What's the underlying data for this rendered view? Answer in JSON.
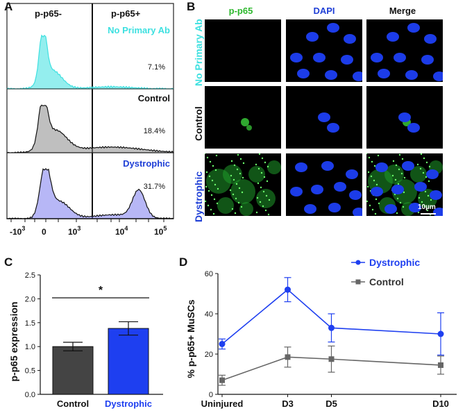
{
  "panels": {
    "a": "A",
    "b": "B",
    "c": "C",
    "d": "D"
  },
  "flow": {
    "gate_neg": "p-p65-",
    "gate_pos": "p-p65+",
    "x_ticks": [
      "-10",
      "3",
      "0",
      "10",
      "3",
      "10",
      "4",
      "10",
      "5"
    ],
    "tracks": [
      {
        "label": "No Primary Ab",
        "pct": "7.1%",
        "color": "#3de0e0"
      },
      {
        "label": "Control",
        "pct": "18.4%",
        "color": "#8a8a8a"
      },
      {
        "label": "Dystrophic",
        "pct": "31.7%",
        "color": "#7b7bef"
      }
    ]
  },
  "micro": {
    "columns": [
      "p-p65",
      "DAPI",
      "Merge"
    ],
    "column_colors": [
      "#2db82d",
      "#1f3fd6",
      "#111111"
    ],
    "rows": [
      "No Primary Ab",
      "Control",
      "Dystrophic"
    ],
    "row_colors": [
      "#3de0e0",
      "#111111",
      "#1f3fd6"
    ],
    "scale_bar": "10µm"
  },
  "chart_data": [
    {
      "type": "bar",
      "ylabel": "p-p65 expression",
      "categories": [
        "Control",
        "Dystrophic"
      ],
      "values": [
        1.0,
        1.38
      ],
      "errors": [
        0.09,
        0.14
      ],
      "colors": [
        "#444444",
        "#1e3ff0"
      ],
      "category_colors": [
        "#111111",
        "#1e3ff0"
      ],
      "ylim": [
        0,
        2.5
      ],
      "yticks": [
        "0.0",
        "0.5",
        "1.0",
        "1.5",
        "2.0",
        "2.5"
      ],
      "significance": "*"
    },
    {
      "type": "line",
      "ylabel": "% p-p65+ MuSCs",
      "x": [
        "Uninjured",
        "D3",
        "D5",
        "D10"
      ],
      "x_positions": [
        0,
        3,
        5,
        10
      ],
      "ylim": [
        0,
        60
      ],
      "yticks": [
        "0",
        "20",
        "40",
        "60"
      ],
      "series": [
        {
          "name": "Dystrophic",
          "values": [
            25,
            52,
            33,
            30
          ],
          "errors": [
            2.5,
            6,
            7,
            10.5
          ],
          "color": "#1e3ff0"
        },
        {
          "name": "Control",
          "values": [
            7,
            18.5,
            17.5,
            14.5
          ],
          "errors": [
            2.5,
            5,
            6.5,
            4.5
          ],
          "color": "#666666"
        }
      ]
    }
  ]
}
